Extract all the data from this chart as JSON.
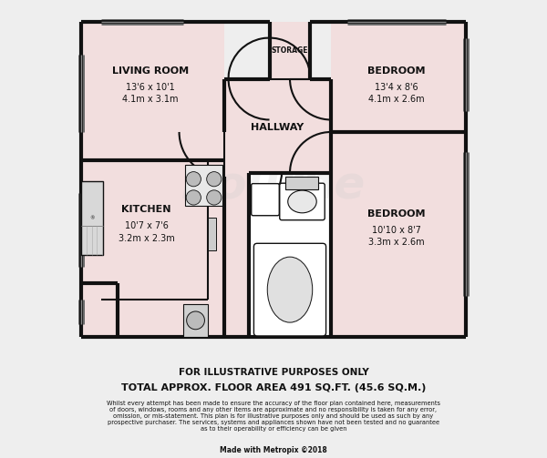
{
  "bg_color": "#eeeeee",
  "wall_color": "#111111",
  "room_fill": "#f2dede",
  "white_fill": "#ffffff",
  "gray_fill": "#d0d0d0",
  "lw": 3.0,
  "title_line1": "FOR ILLUSTRATIVE PURPOSES ONLY",
  "title_line2": "TOTAL APPROX. FLOOR AREA 491 SQ.FT. (45.6 SQ.M.)",
  "disclaimer": "Whilst every attempt has been made to ensure the accuracy of the floor plan contained here, measurements\nof doors, windows, rooms and any other items are approximate and no responsibility is taken for any error,\nomission, or mis-statement. This plan is for illustrative purposes only and should be used as such by any\nprospective purchaser. The services, systems and appliances shown have not been tested and no guarantee\nas to their operability or efficiency can be given",
  "made_with": "Made with Metropix ©2018",
  "watermark": "Bourne"
}
